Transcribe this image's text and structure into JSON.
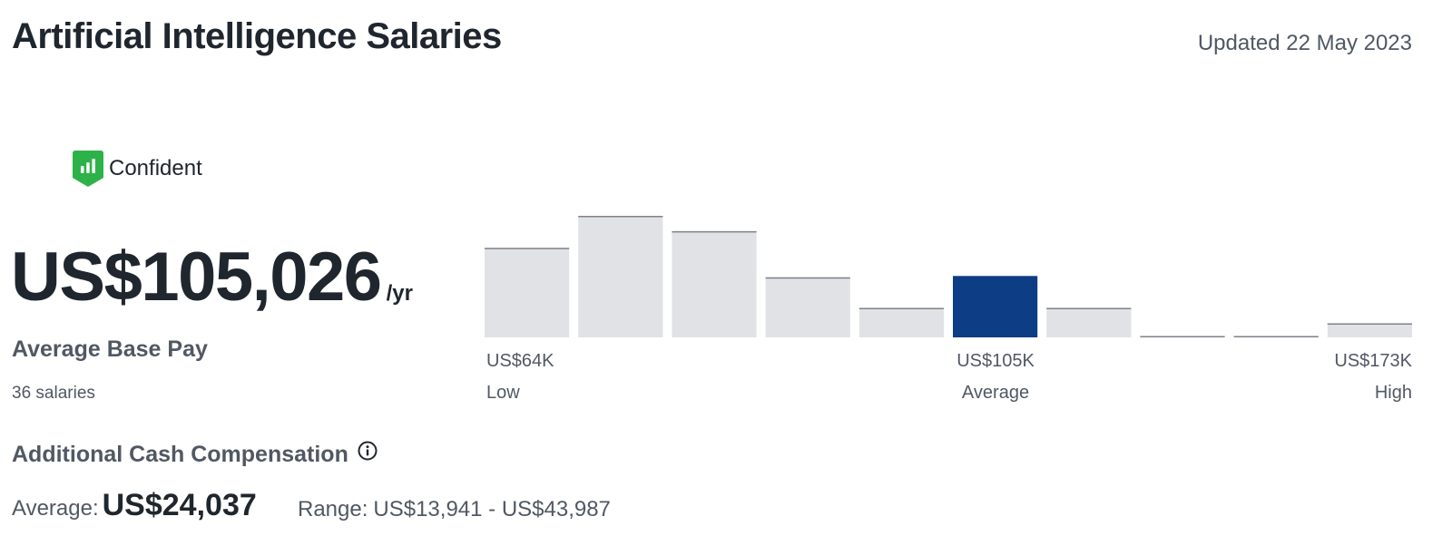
{
  "page": {
    "title": "Artificial Intelligence Salaries",
    "updated": "Updated 22 May 2023"
  },
  "confidence": {
    "icon": "bar-chart-shield-icon",
    "label": "Confident",
    "color": "#2db24a"
  },
  "base_pay": {
    "amount": "US$105,026",
    "unit": "/yr",
    "label": "Average Base Pay",
    "count": "36 salaries"
  },
  "histogram": {
    "axis": {
      "low_value": "US$64K",
      "low_label": "Low",
      "avg_value": "US$105K",
      "avg_label": "Average",
      "high_value": "US$173K",
      "high_label": "High"
    }
  },
  "chart_data": {
    "type": "bar",
    "values": [
      7,
      9.5,
      8.3,
      4.7,
      2.3,
      4.8,
      2.3,
      0.1,
      0.1,
      1.1
    ],
    "highlight_index": 5,
    "colors": {
      "bar": "#e1e2e5",
      "bar_top": "#7c818a",
      "highlight": "#0d3d85"
    }
  },
  "additional_cash": {
    "label": "Additional Cash Compensation",
    "info_icon": "info-icon",
    "average_label": "Average:",
    "average_value": "US$24,037",
    "range_label": "Range:",
    "range_value": "US$13,941 - US$43,987"
  }
}
